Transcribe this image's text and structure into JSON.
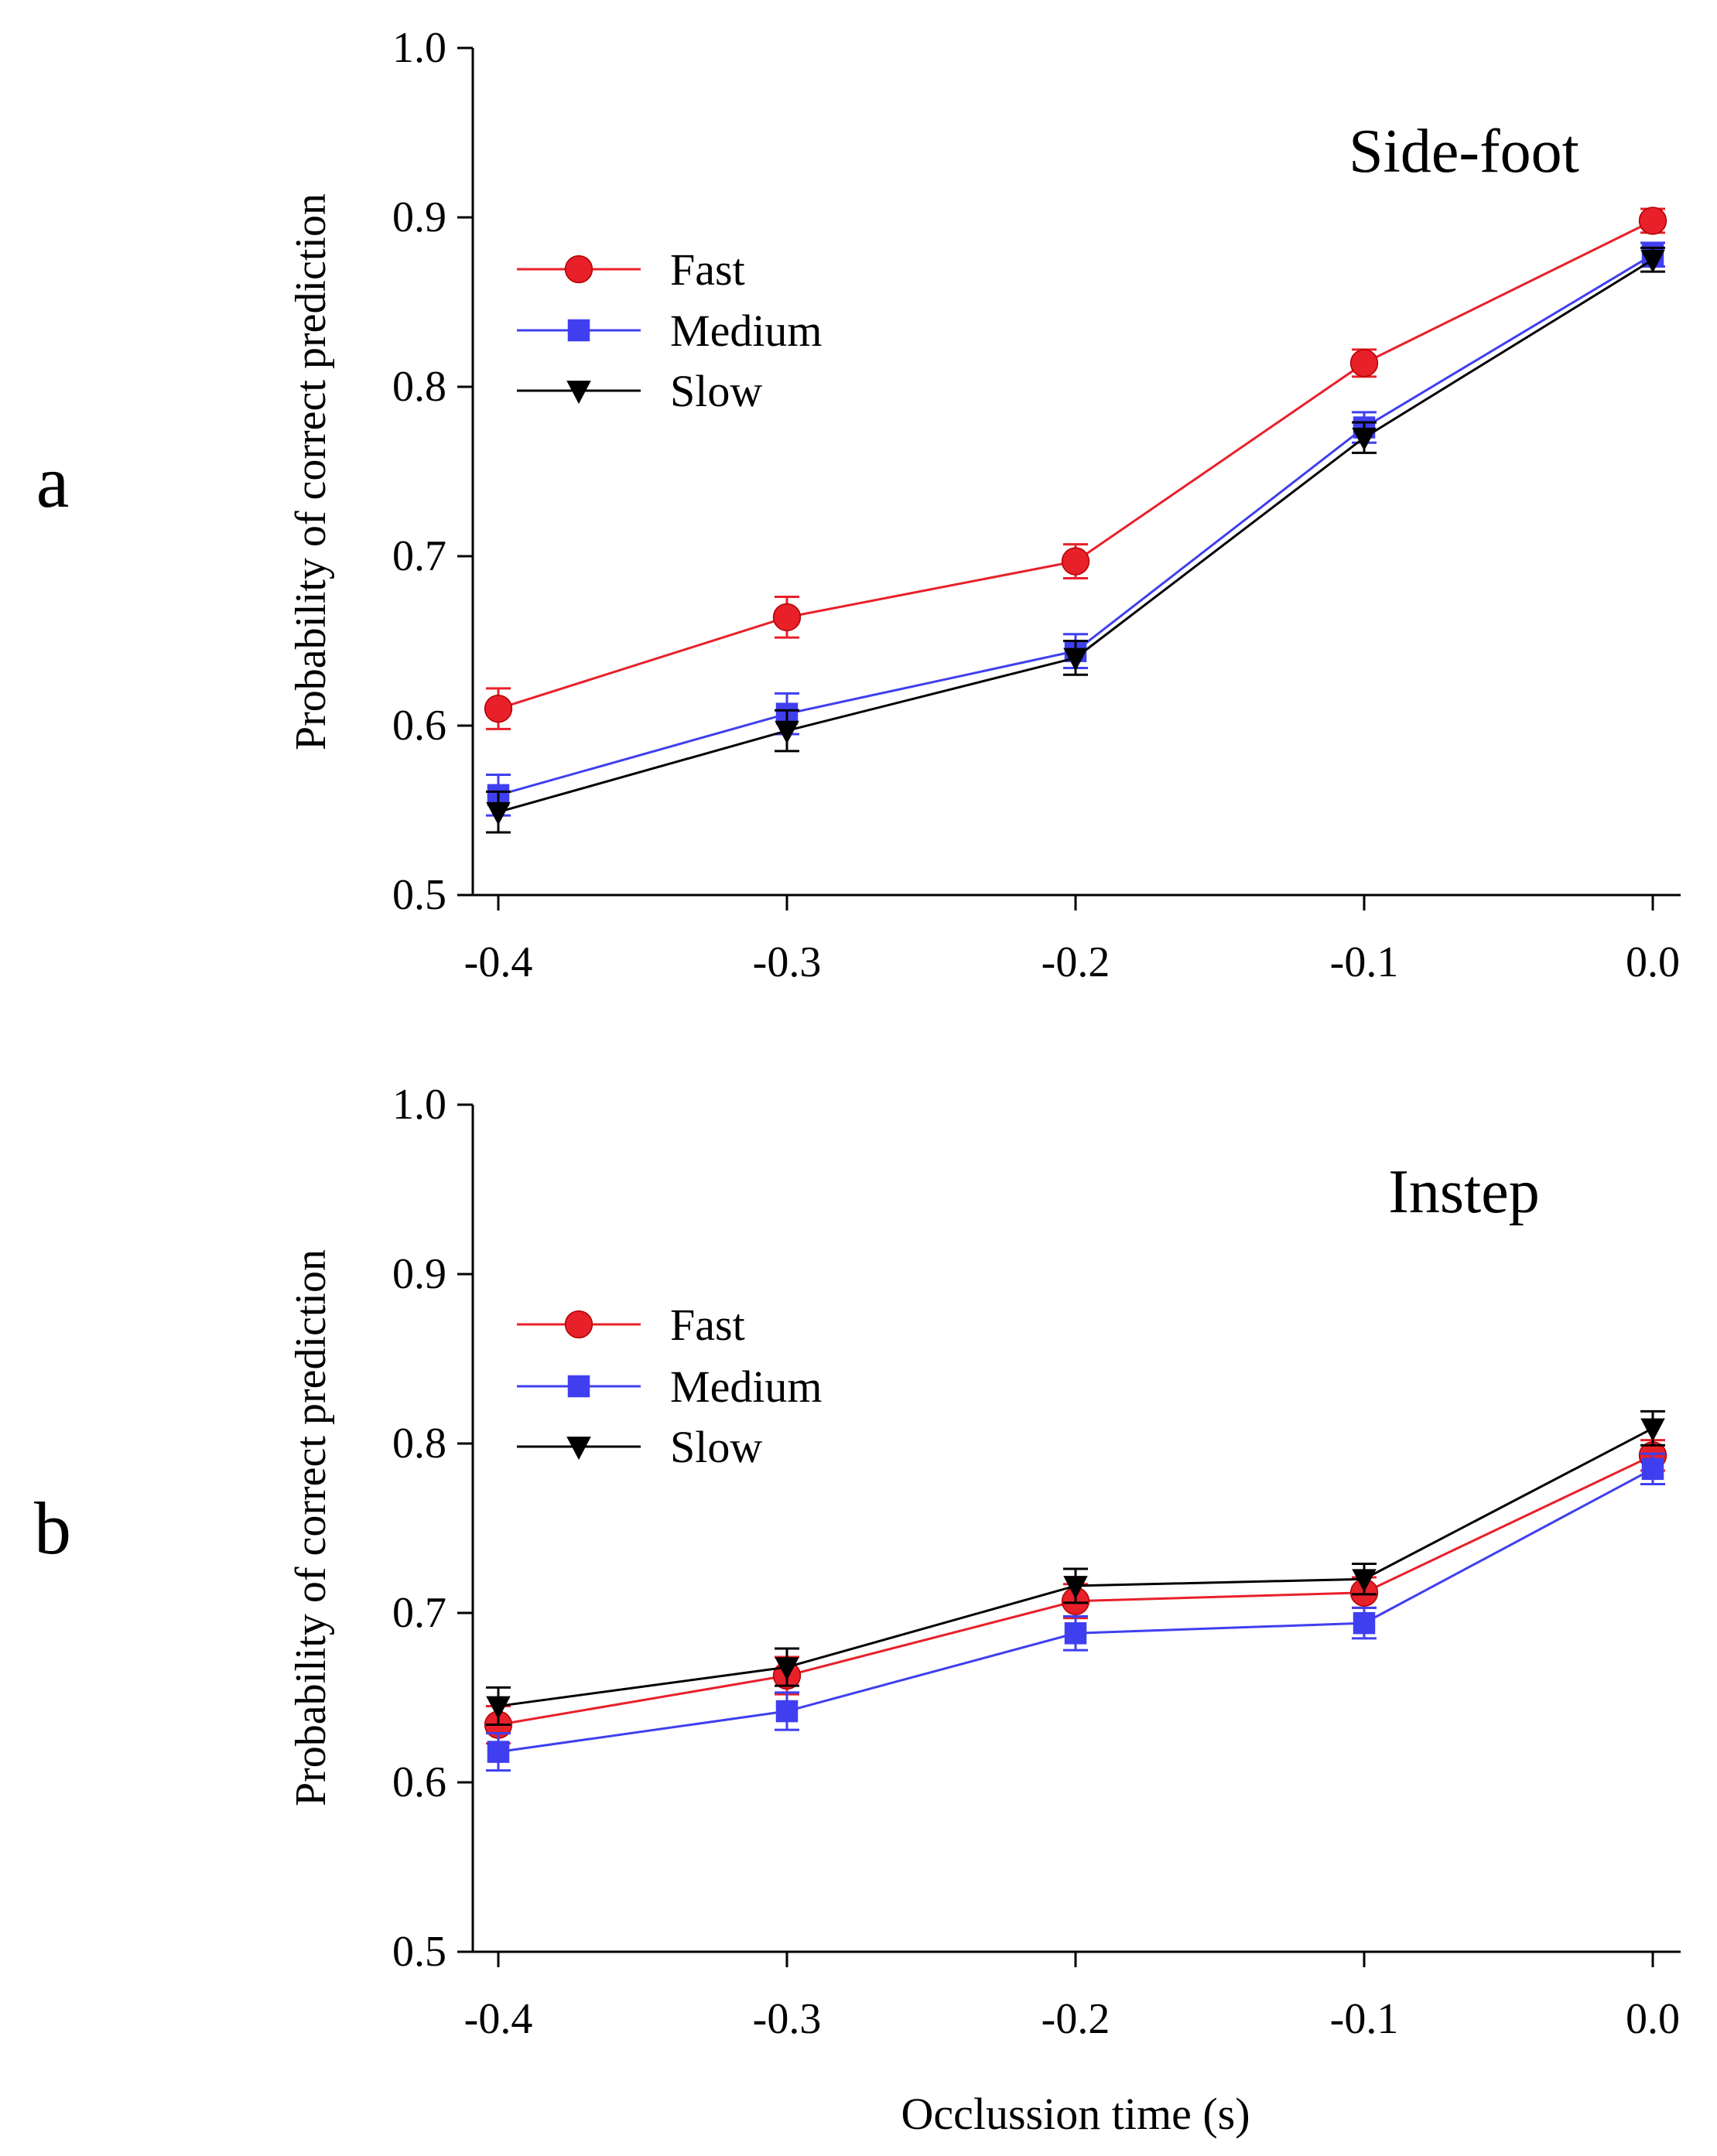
{
  "figure": {
    "xlabel": "Occlussion time (s)"
  },
  "chart_data": [
    {
      "type": "line",
      "panel_label": "a",
      "title": "Side-foot",
      "xlabel": "",
      "ylabel": "Probability of correct prediction",
      "x": [
        -0.4,
        -0.3,
        -0.2,
        -0.1,
        0.0
      ],
      "x_tick_labels": [
        "-0.4",
        "-0.3",
        "-0.2",
        "-0.1",
        "0.0"
      ],
      "y_ticks": [
        0.5,
        0.6,
        0.7,
        0.8,
        0.9,
        1.0
      ],
      "y_tick_labels": [
        "0.5",
        "0.6",
        "0.7",
        "0.8",
        "0.9",
        "1.0"
      ],
      "xlim": [
        -0.4,
        0.0
      ],
      "ylim": [
        0.5,
        1.0
      ],
      "legend_position": "upper-left",
      "series": [
        {
          "name": "Fast",
          "marker": "circle",
          "color": "#e8202a",
          "values": [
            0.61,
            0.664,
            0.697,
            0.814,
            0.898
          ],
          "errors": [
            0.012,
            0.012,
            0.01,
            0.008,
            0.007
          ]
        },
        {
          "name": "Medium",
          "marker": "square",
          "color": "#3f3ff0",
          "values": [
            0.559,
            0.607,
            0.644,
            0.776,
            0.878
          ],
          "errors": [
            0.012,
            0.012,
            0.01,
            0.009,
            0.007
          ]
        },
        {
          "name": "Slow",
          "marker": "triangle-down",
          "color": "#000000",
          "values": [
            0.549,
            0.597,
            0.64,
            0.77,
            0.875
          ],
          "errors": [
            0.012,
            0.012,
            0.01,
            0.009,
            0.007
          ]
        }
      ]
    },
    {
      "type": "line",
      "panel_label": "b",
      "title": "Instep",
      "xlabel": "Occlussion time (s)",
      "ylabel": "Probability of correct prediction",
      "x": [
        -0.4,
        -0.3,
        -0.2,
        -0.1,
        0.0
      ],
      "x_tick_labels": [
        "-0.4",
        "-0.3",
        "-0.2",
        "-0.1",
        "0.0"
      ],
      "y_ticks": [
        0.5,
        0.6,
        0.7,
        0.8,
        0.9,
        1.0
      ],
      "y_tick_labels": [
        "0.5",
        "0.6",
        "0.7",
        "0.8",
        "0.9",
        "1.0"
      ],
      "xlim": [
        -0.4,
        0.0
      ],
      "ylim": [
        0.5,
        1.0
      ],
      "legend_position": "upper-left",
      "series": [
        {
          "name": "Fast",
          "marker": "circle",
          "color": "#e8202a",
          "values": [
            0.634,
            0.663,
            0.707,
            0.712,
            0.793
          ],
          "errors": [
            0.011,
            0.011,
            0.01,
            0.009,
            0.009
          ]
        },
        {
          "name": "Medium",
          "marker": "square",
          "color": "#3f3ff0",
          "values": [
            0.618,
            0.642,
            0.688,
            0.694,
            0.785
          ],
          "errors": [
            0.011,
            0.011,
            0.01,
            0.009,
            0.009
          ]
        },
        {
          "name": "Slow",
          "marker": "triangle-down",
          "color": "#000000",
          "values": [
            0.645,
            0.668,
            0.716,
            0.72,
            0.809
          ],
          "errors": [
            0.011,
            0.011,
            0.01,
            0.009,
            0.01
          ]
        }
      ]
    }
  ]
}
